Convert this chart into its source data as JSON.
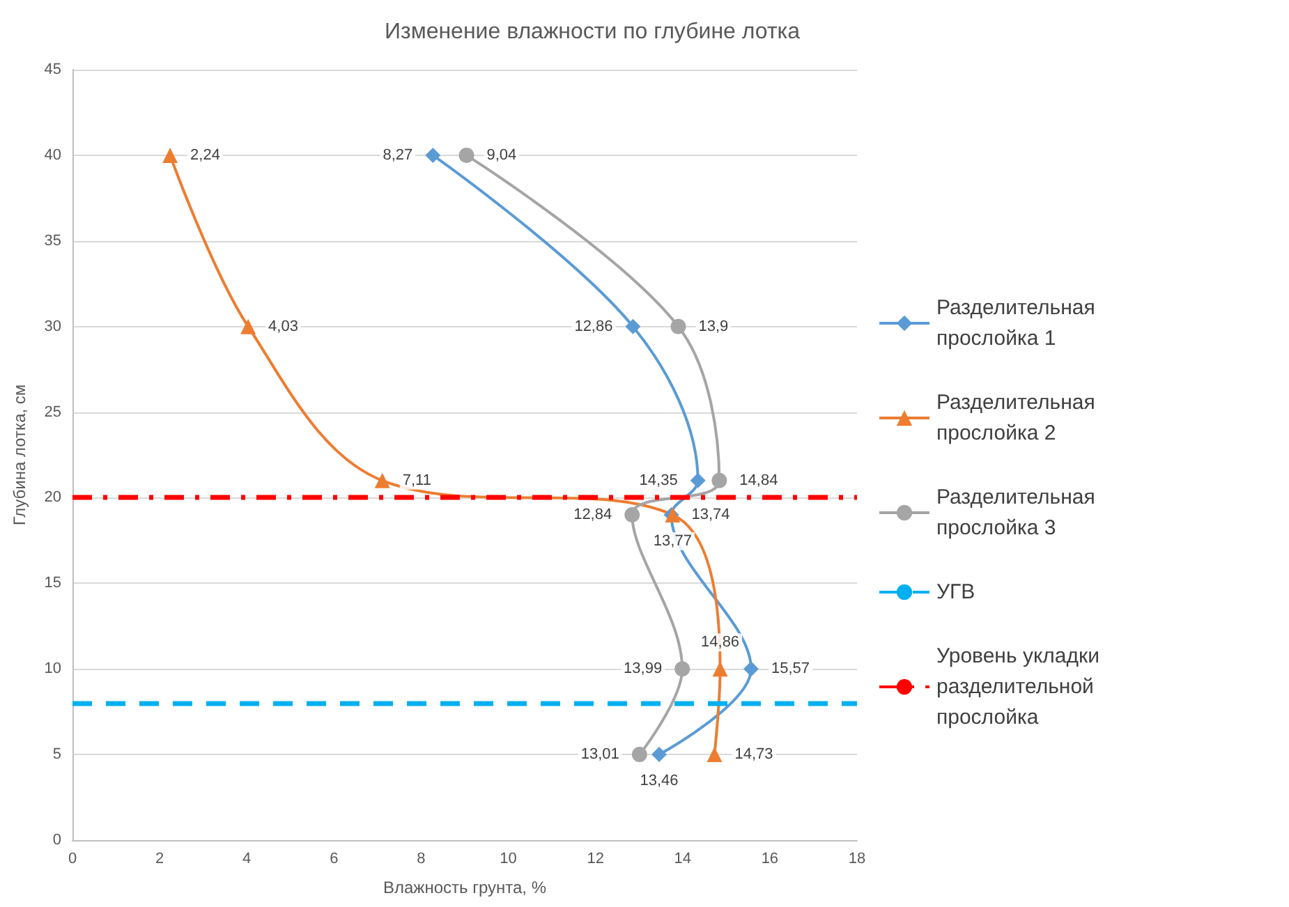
{
  "chart_data": {
    "type": "line",
    "orientation": "horizontal",
    "title": "Изменение влажности по глубине лотка",
    "xlabel": "Влажность грунта, %",
    "ylabel": "Глубина лотка, см",
    "xlim": [
      0,
      18
    ],
    "xticks": [
      0,
      2,
      4,
      6,
      8,
      10,
      12,
      14,
      16,
      18
    ],
    "ylim": [
      0,
      45
    ],
    "yticks": [
      0,
      5,
      10,
      15,
      20,
      25,
      30,
      35,
      40,
      45
    ],
    "grid": "y",
    "legend": "right",
    "series": [
      {
        "name": "Разделительная прослойка 1",
        "color": "#5b9bd5",
        "marker": "diamond",
        "x": [
          40,
          30,
          21,
          19,
          10,
          5
        ],
        "values": [
          8.27,
          12.86,
          14.35,
          13.74,
          15.57,
          13.46
        ],
        "value_labels": [
          "8,27",
          "12,86",
          "14,35",
          "13,74",
          "15,57",
          "13,46"
        ]
      },
      {
        "name": "Разделительная прослойка 2",
        "color": "#ed7d31",
        "marker": "triangle",
        "x": [
          40,
          30,
          21,
          19,
          10,
          5
        ],
        "values": [
          2.24,
          4.03,
          7.11,
          13.77,
          14.86,
          14.73
        ],
        "value_labels": [
          "2,24",
          "4,03",
          "7,11",
          "13,77",
          "14,86",
          "14,73"
        ]
      },
      {
        "name": "Разделительная прослойка 3",
        "color": "#a5a5a5",
        "marker": "circle",
        "x": [
          40,
          30,
          21,
          19,
          10,
          5
        ],
        "values": [
          9.04,
          13.9,
          14.84,
          12.84,
          13.99,
          13.01
        ],
        "value_labels": [
          "9,04",
          "13,9",
          "14,84",
          "12,84",
          "13,99",
          "13,01"
        ]
      }
    ],
    "ref_lines": [
      {
        "axis": "y",
        "value": 8,
        "label": "УГВ",
        "color": "#00b0f0",
        "line_style": "dashed"
      },
      {
        "axis": "y",
        "value": 20,
        "label": "Уровень укладки разделительной прослойка",
        "color": "#ff0000",
        "line_style": "dashdot"
      }
    ]
  }
}
